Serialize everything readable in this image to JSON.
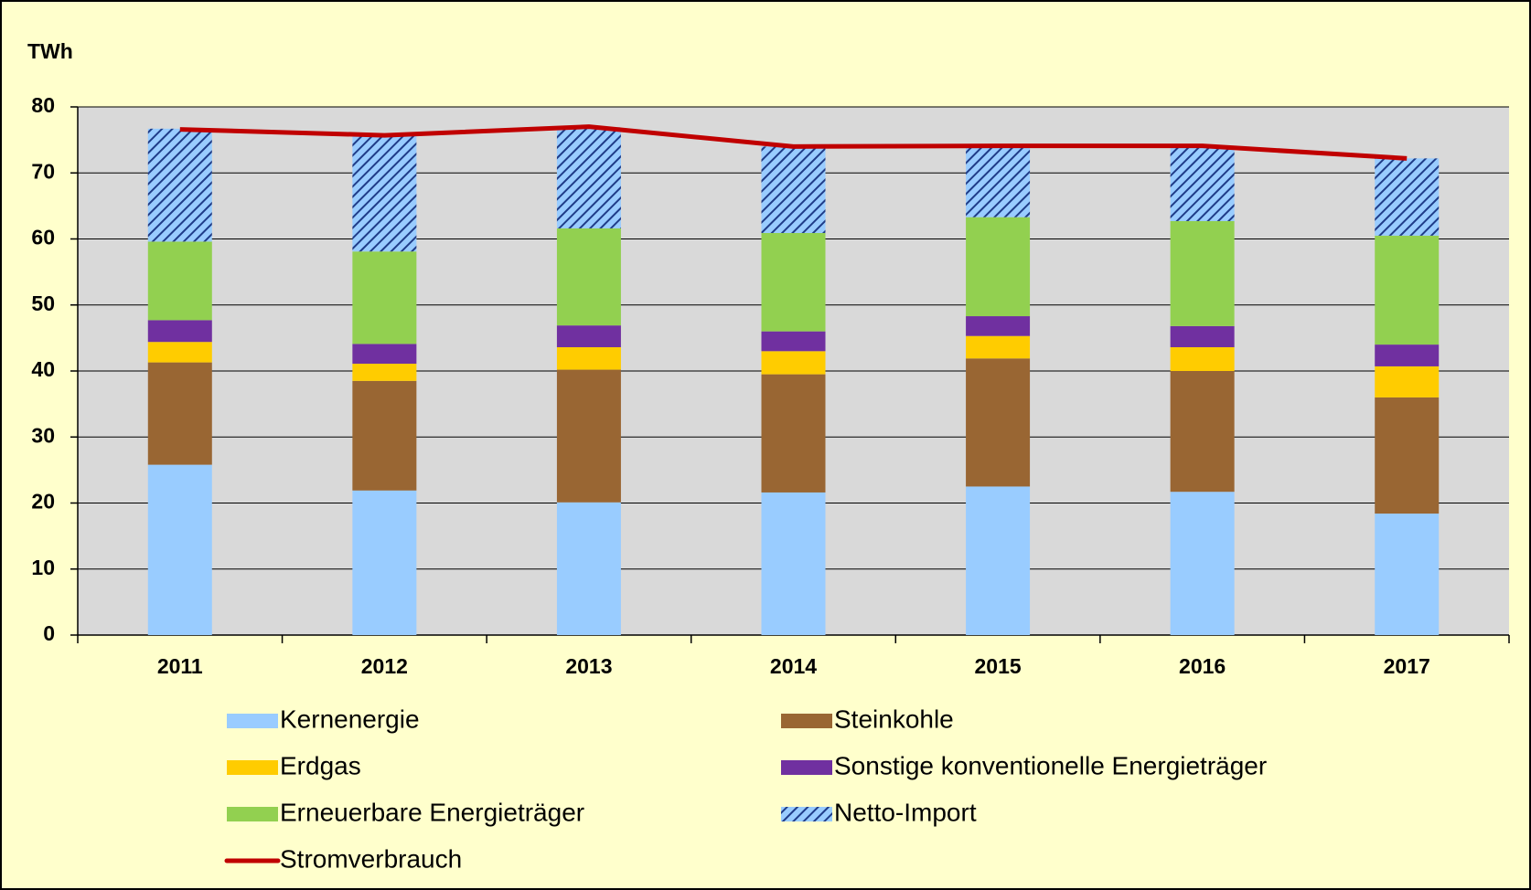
{
  "chart_data": {
    "type": "bar",
    "stacked": true,
    "y_label": "TWh",
    "categories": [
      "2011",
      "2012",
      "2013",
      "2014",
      "2015",
      "2016",
      "2017"
    ],
    "series": [
      {
        "name": "Kernenergie",
        "color": "#99ccff",
        "values": [
          25.8,
          21.9,
          20.1,
          21.6,
          22.5,
          21.7,
          18.4
        ]
      },
      {
        "name": "Steinkohle",
        "color": "#996633",
        "values": [
          15.5,
          16.6,
          20.1,
          17.9,
          19.4,
          18.3,
          17.6
        ]
      },
      {
        "name": "Erdgas",
        "color": "#ffcc00",
        "values": [
          3.1,
          2.6,
          3.4,
          3.5,
          3.4,
          3.6,
          4.7
        ]
      },
      {
        "name": "Sonstige konventionelle Energieträger",
        "color": "#7030a0",
        "values": [
          3.3,
          3.0,
          3.3,
          3.0,
          3.0,
          3.2,
          3.3
        ]
      },
      {
        "name": "Erneuerbare Energieträger",
        "color": "#92d050",
        "values": [
          11.9,
          14.0,
          14.7,
          14.9,
          15.0,
          15.9,
          16.5
        ]
      },
      {
        "name": "Netto-Import",
        "color": "#99ccff",
        "pattern": "hatch",
        "values": [
          17.1,
          17.5,
          15.3,
          13.1,
          10.8,
          11.4,
          11.7
        ]
      },
      {
        "name": "Stromverbrauch",
        "type": "line",
        "color": "#c00000",
        "values": [
          76.6,
          75.7,
          77.0,
          74.0,
          74.1,
          74.1,
          72.2
        ]
      }
    ],
    "ylim": [
      0,
      80
    ],
    "yticks": [
      0,
      10,
      20,
      30,
      40,
      50,
      60,
      70,
      80
    ],
    "grid": true
  }
}
